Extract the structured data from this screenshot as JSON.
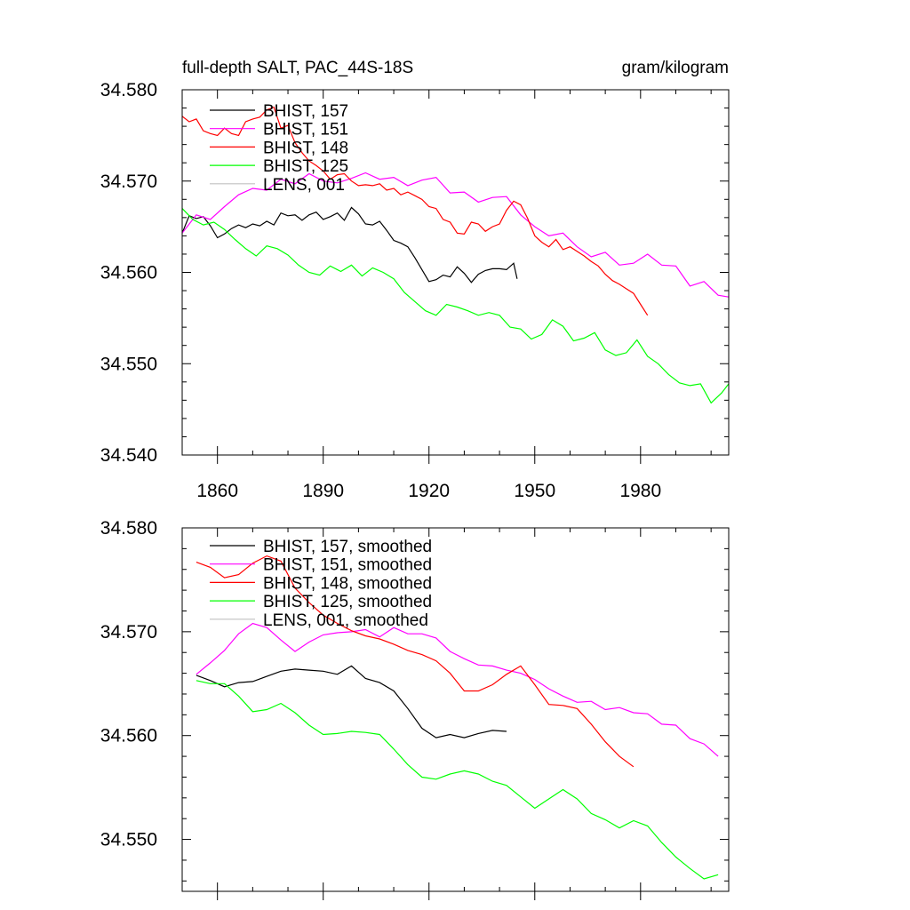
{
  "header": {
    "title_left": "full-depth SALT, PAC_44S-18S",
    "title_right": "gram/kilogram"
  },
  "chart_data": [
    {
      "type": "line",
      "panel": "top",
      "title": "full-depth SALT, PAC_44S-18S",
      "units": "gram/kilogram",
      "xlim": [
        1850,
        2005
      ],
      "ylim": [
        34.54,
        34.58
      ],
      "x_ticks": [
        1860,
        1890,
        1920,
        1950,
        1980
      ],
      "x_tick_labels": [
        "1860",
        "1890",
        "1920",
        "1950",
        "1980"
      ],
      "y_ticks": [
        34.54,
        34.55,
        34.56,
        34.57,
        34.58
      ],
      "y_tick_labels": [
        "34.540",
        "34.550",
        "34.560",
        "34.570",
        "34.580"
      ],
      "legend_position": "top-left",
      "series": [
        {
          "name": "BHIST, 157",
          "color": "#000000",
          "x": [
            1850,
            1852,
            1854,
            1856,
            1858,
            1860,
            1862,
            1864,
            1866,
            1868,
            1870,
            1872,
            1874,
            1876,
            1878,
            1880,
            1882,
            1884,
            1886,
            1888,
            1890,
            1892,
            1894,
            1896,
            1898,
            1900,
            1902,
            1904,
            1906,
            1908,
            1910,
            1912,
            1914,
            1916,
            1918,
            1920,
            1922,
            1924,
            1926,
            1928,
            1930,
            1932,
            1934,
            1936,
            1938,
            1940,
            1942,
            1944,
            1945
          ],
          "values": [
            34.5643,
            34.5662,
            34.5659,
            34.5661,
            34.5651,
            34.5638,
            34.5642,
            34.5648,
            34.5652,
            34.5649,
            34.5653,
            34.5651,
            34.5656,
            34.5652,
            34.5665,
            34.5662,
            34.5663,
            34.5657,
            34.5663,
            34.5666,
            34.5658,
            34.5661,
            34.5665,
            34.5657,
            34.5671,
            34.5664,
            34.5653,
            34.5652,
            34.5656,
            34.5646,
            34.5635,
            34.5632,
            34.5628,
            34.5616,
            34.5603,
            34.559,
            34.5592,
            34.5597,
            34.5595,
            34.5606,
            34.5599,
            34.5589,
            34.5598,
            34.5602,
            34.5604,
            34.5604,
            34.5603,
            34.561,
            34.5593
          ]
        },
        {
          "name": "BHIST, 151",
          "color": "#ff00ff",
          "x": [
            1850,
            1854,
            1858,
            1862,
            1866,
            1870,
            1874,
            1878,
            1882,
            1886,
            1890,
            1894,
            1898,
            1902,
            1906,
            1910,
            1914,
            1918,
            1922,
            1926,
            1930,
            1934,
            1938,
            1942,
            1946,
            1950,
            1954,
            1958,
            1962,
            1966,
            1970,
            1974,
            1978,
            1982,
            1986,
            1990,
            1994,
            1998,
            2002,
            2005
          ],
          "values": [
            34.5643,
            34.5663,
            34.5658,
            34.5672,
            34.5685,
            34.5692,
            34.569,
            34.5702,
            34.5697,
            34.5708,
            34.57,
            34.5698,
            34.5703,
            34.5709,
            34.5702,
            34.5704,
            34.5695,
            34.5701,
            34.5704,
            34.5687,
            34.5688,
            34.5677,
            34.5682,
            34.5683,
            34.5663,
            34.565,
            34.564,
            34.5643,
            34.5628,
            34.5617,
            34.5622,
            34.5608,
            34.561,
            34.562,
            34.5608,
            34.5607,
            34.5585,
            34.559,
            34.5575,
            34.5573
          ]
        },
        {
          "name": "BHIST, 148",
          "color": "#ff0000",
          "x": [
            1850,
            1852,
            1854,
            1856,
            1858,
            1860,
            1862,
            1864,
            1866,
            1868,
            1870,
            1872,
            1874,
            1876,
            1878,
            1880,
            1882,
            1884,
            1886,
            1888,
            1890,
            1892,
            1894,
            1896,
            1898,
            1900,
            1902,
            1904,
            1906,
            1908,
            1910,
            1912,
            1914,
            1916,
            1918,
            1920,
            1922,
            1924,
            1926,
            1928,
            1930,
            1932,
            1934,
            1936,
            1938,
            1940,
            1942,
            1944,
            1946,
            1948,
            1950,
            1952,
            1954,
            1956,
            1958,
            1960,
            1962,
            1964,
            1966,
            1968,
            1970,
            1972,
            1974,
            1976,
            1978,
            1980,
            1982
          ],
          "values": [
            34.5771,
            34.5765,
            34.5768,
            34.5755,
            34.5752,
            34.575,
            34.5758,
            34.5752,
            34.575,
            34.5765,
            34.5768,
            34.577,
            34.5778,
            34.5781,
            34.5758,
            34.5761,
            34.5742,
            34.5731,
            34.5722,
            34.5717,
            34.5711,
            34.5702,
            34.5707,
            34.5708,
            34.57,
            34.5695,
            34.5696,
            34.5695,
            34.5697,
            34.569,
            34.5692,
            34.5685,
            34.5688,
            34.5684,
            34.568,
            34.5672,
            34.567,
            34.5658,
            34.5655,
            34.5643,
            34.5642,
            34.5655,
            34.5653,
            34.5645,
            34.565,
            34.5653,
            34.5668,
            34.5678,
            34.5674,
            34.5659,
            34.564,
            34.5633,
            34.5628,
            34.5636,
            34.5625,
            34.5628,
            34.5623,
            34.5618,
            34.5612,
            34.5607,
            34.5598,
            34.5591,
            34.5587,
            34.5582,
            34.5577,
            34.5565,
            34.5553
          ]
        },
        {
          "name": "BHIST, 125",
          "color": "#00ff00",
          "x": [
            1850,
            1853,
            1856,
            1859,
            1862,
            1865,
            1868,
            1871,
            1874,
            1877,
            1880,
            1883,
            1886,
            1889,
            1892,
            1895,
            1898,
            1901,
            1904,
            1907,
            1910,
            1913,
            1916,
            1919,
            1922,
            1925,
            1928,
            1931,
            1934,
            1937,
            1940,
            1943,
            1946,
            1949,
            1952,
            1955,
            1958,
            1961,
            1964,
            1967,
            1970,
            1973,
            1976,
            1979,
            1982,
            1985,
            1988,
            1991,
            1994,
            1997,
            2000,
            2003,
            2005
          ],
          "values": [
            34.567,
            34.5658,
            34.5652,
            34.5655,
            34.5647,
            34.5636,
            34.5626,
            34.5618,
            34.5629,
            34.5626,
            34.5619,
            34.5608,
            34.56,
            34.5597,
            34.5607,
            34.5601,
            34.5608,
            34.5596,
            34.5605,
            34.56,
            34.5593,
            34.5578,
            34.5568,
            34.5558,
            34.5553,
            34.5565,
            34.5562,
            34.5558,
            34.5553,
            34.5556,
            34.5553,
            34.554,
            34.5538,
            34.5527,
            34.5532,
            34.5548,
            34.5541,
            34.5525,
            34.5528,
            34.5534,
            34.5515,
            34.5509,
            34.5512,
            34.5526,
            34.5508,
            34.55,
            34.5488,
            34.5479,
            34.5476,
            34.5478,
            34.5457,
            34.5468,
            34.5478
          ]
        }
      ],
      "legend": [
        {
          "label": "BHIST, 157",
          "color": "#000000"
        },
        {
          "label": "BHIST, 151",
          "color": "#ff00ff"
        },
        {
          "label": "BHIST, 148",
          "color": "#ff0000"
        },
        {
          "label": "BHIST, 125",
          "color": "#00ff00"
        },
        {
          "label": "LENS, 001",
          "color": "#c0c0c0"
        }
      ]
    },
    {
      "type": "line",
      "panel": "bottom",
      "xlim": [
        1850,
        2005
      ],
      "ylim": [
        34.545,
        34.58
      ],
      "y_ticks": [
        34.55,
        34.56,
        34.57,
        34.58
      ],
      "y_tick_labels": [
        "34.550",
        "34.560",
        "34.570",
        "34.580"
      ],
      "x_ticks": [
        1860,
        1890,
        1920,
        1950,
        1980
      ],
      "legend_position": "top-left",
      "series": [
        {
          "name": "BHIST, 157, smoothed",
          "color": "#000000",
          "x": [
            1854,
            1858,
            1862,
            1866,
            1870,
            1874,
            1878,
            1882,
            1886,
            1890,
            1894,
            1898,
            1902,
            1906,
            1910,
            1914,
            1918,
            1922,
            1926,
            1930,
            1934,
            1938,
            1942
          ],
          "values": [
            34.5658,
            34.5653,
            34.5647,
            34.5651,
            34.5652,
            34.5657,
            34.5662,
            34.5664,
            34.5663,
            34.5662,
            34.5659,
            34.5667,
            34.5655,
            34.5651,
            34.5643,
            34.5626,
            34.5607,
            34.5598,
            34.5601,
            34.5598,
            34.5602,
            34.5605,
            34.5604
          ]
        },
        {
          "name": "BHIST, 151, smoothed",
          "color": "#ff00ff",
          "x": [
            1854,
            1858,
            1862,
            1866,
            1870,
            1874,
            1878,
            1882,
            1886,
            1890,
            1894,
            1898,
            1902,
            1906,
            1910,
            1914,
            1918,
            1922,
            1926,
            1930,
            1934,
            1938,
            1942,
            1946,
            1950,
            1954,
            1958,
            1962,
            1966,
            1970,
            1974,
            1978,
            1982,
            1986,
            1990,
            1994,
            1998,
            2002
          ],
          "values": [
            34.5659,
            34.567,
            34.5682,
            34.5698,
            34.5708,
            34.5704,
            34.5692,
            34.5681,
            34.569,
            34.5697,
            34.5699,
            34.57,
            34.5702,
            34.5695,
            34.5704,
            34.5698,
            34.5698,
            34.5694,
            34.5681,
            34.5674,
            34.5668,
            34.5667,
            34.5663,
            34.566,
            34.5654,
            34.5645,
            34.5638,
            34.5632,
            34.5633,
            34.5625,
            34.5627,
            34.5622,
            34.5621,
            34.5611,
            34.561,
            34.5597,
            34.5592,
            34.558
          ]
        },
        {
          "name": "BHIST, 148, smoothed",
          "color": "#ff0000",
          "x": [
            1854,
            1858,
            1862,
            1866,
            1870,
            1874,
            1878,
            1882,
            1886,
            1890,
            1894,
            1898,
            1902,
            1906,
            1910,
            1914,
            1918,
            1922,
            1926,
            1930,
            1934,
            1938,
            1942,
            1946,
            1950,
            1954,
            1958,
            1962,
            1966,
            1970,
            1974,
            1978
          ],
          "values": [
            34.5767,
            34.5762,
            34.5752,
            34.5755,
            34.5766,
            34.5773,
            34.5768,
            34.5742,
            34.5728,
            34.5716,
            34.5708,
            34.5701,
            34.5696,
            34.5693,
            34.5688,
            34.5682,
            34.5678,
            34.5672,
            34.566,
            34.5643,
            34.5643,
            34.5649,
            34.5659,
            34.5667,
            34.5649,
            34.563,
            34.5629,
            34.5626,
            34.5611,
            34.5594,
            34.558,
            34.557
          ]
        },
        {
          "name": "BHIST, 125, smoothed",
          "color": "#00ff00",
          "x": [
            1854,
            1858,
            1862,
            1866,
            1870,
            1874,
            1878,
            1882,
            1886,
            1890,
            1894,
            1898,
            1902,
            1906,
            1910,
            1914,
            1918,
            1922,
            1926,
            1930,
            1934,
            1938,
            1942,
            1946,
            1950,
            1954,
            1958,
            1962,
            1966,
            1970,
            1974,
            1978,
            1982,
            1986,
            1990,
            1994,
            1998,
            2002
          ],
          "values": [
            34.5653,
            34.565,
            34.565,
            34.5638,
            34.5623,
            34.5625,
            34.5631,
            34.5622,
            34.561,
            34.5601,
            34.5602,
            34.5604,
            34.5603,
            34.5601,
            34.5587,
            34.5572,
            34.556,
            34.5558,
            34.5563,
            34.5566,
            34.5563,
            34.5556,
            34.5552,
            34.5541,
            34.553,
            34.5539,
            34.5548,
            34.5539,
            34.5525,
            34.5519,
            34.5511,
            34.5518,
            34.5513,
            34.5497,
            34.5483,
            34.5472,
            34.5462,
            34.5466
          ]
        }
      ],
      "legend": [
        {
          "label": "BHIST, 157, smoothed",
          "color": "#000000"
        },
        {
          "label": "BHIST, 151, smoothed",
          "color": "#ff00ff"
        },
        {
          "label": "BHIST, 148, smoothed",
          "color": "#ff0000"
        },
        {
          "label": "BHIST, 125, smoothed",
          "color": "#00ff00"
        },
        {
          "label": "LENS, 001, smoothed",
          "color": "#c0c0c0"
        }
      ]
    }
  ]
}
